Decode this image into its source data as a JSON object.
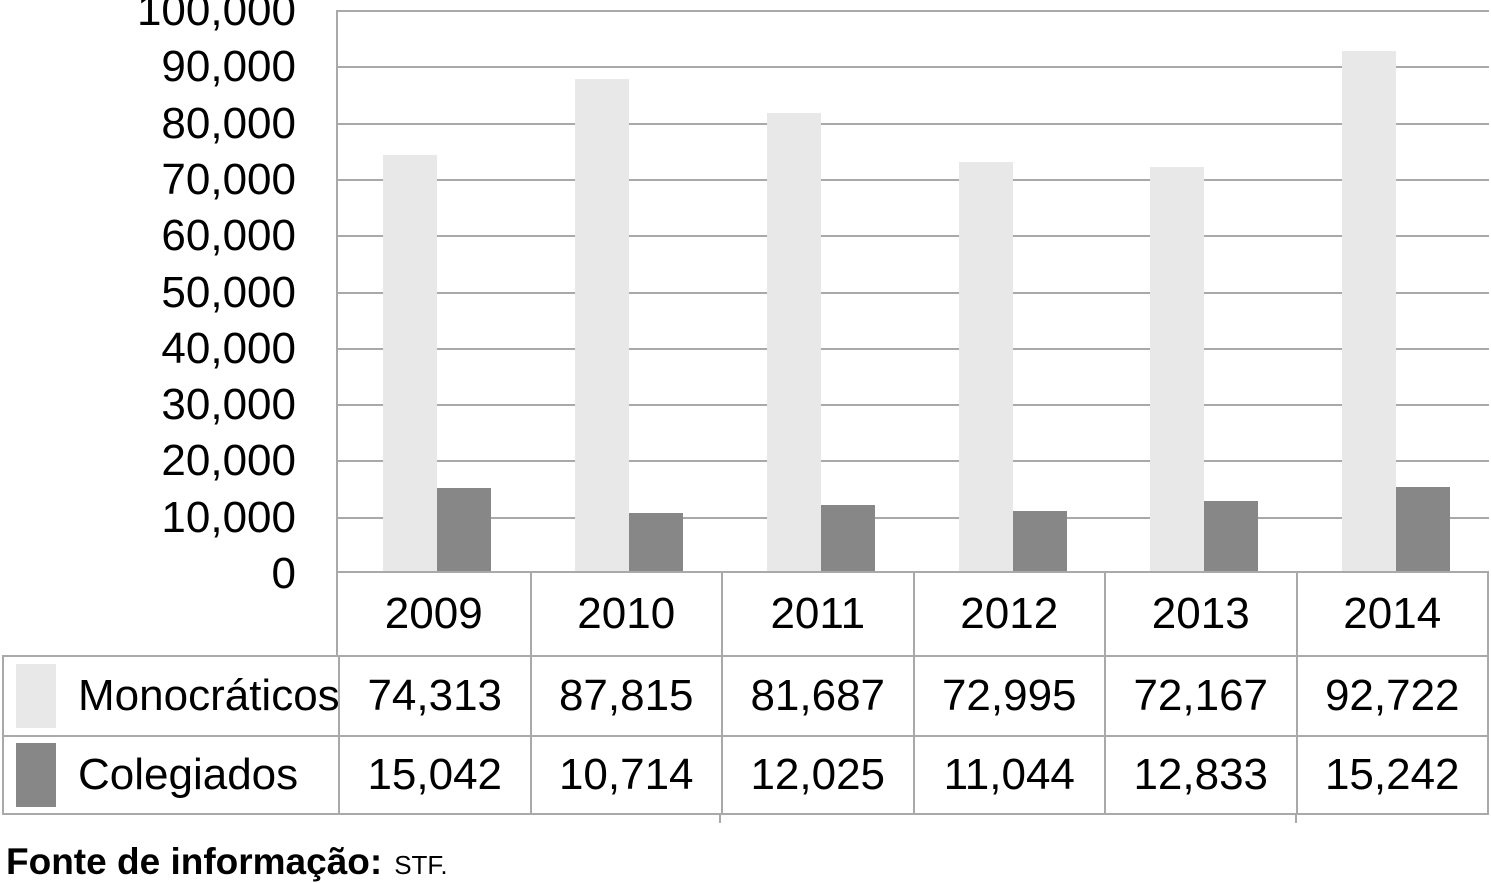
{
  "chart_data": {
    "type": "bar",
    "categories": [
      "2009",
      "2010",
      "2011",
      "2012",
      "2013",
      "2014"
    ],
    "series": [
      {
        "name": "Monocráticos",
        "color": "#e8e8e8",
        "values": [
          74313,
          87815,
          81687,
          72995,
          72167,
          92722
        ],
        "values_formatted": [
          "74,313",
          "87,815",
          "81,687",
          "72,995",
          "72,167",
          "92,722"
        ]
      },
      {
        "name": "Colegiados",
        "color": "#878787",
        "values": [
          15042,
          10714,
          12025,
          11044,
          12833,
          15242
        ],
        "values_formatted": [
          "15,042",
          "10,714",
          "12,025",
          "11,044",
          "12,833",
          "15,242"
        ]
      }
    ],
    "title": "",
    "xlabel": "",
    "ylabel": "",
    "ylim": [
      0,
      100000
    ],
    "ytick_step": 10000,
    "ytick_labels": [
      "0",
      "10,000",
      "20,000",
      "30,000",
      "40,000",
      "50,000",
      "60,000",
      "70,000",
      "80,000",
      "90,000",
      "100,000"
    ],
    "grid": true,
    "legend_position": "data-table-left",
    "gridline_color": "#a9a9a9",
    "text_color": "#000000"
  },
  "footer": {
    "source_label": "Fonte de informação:",
    "source_value": "STF."
  }
}
